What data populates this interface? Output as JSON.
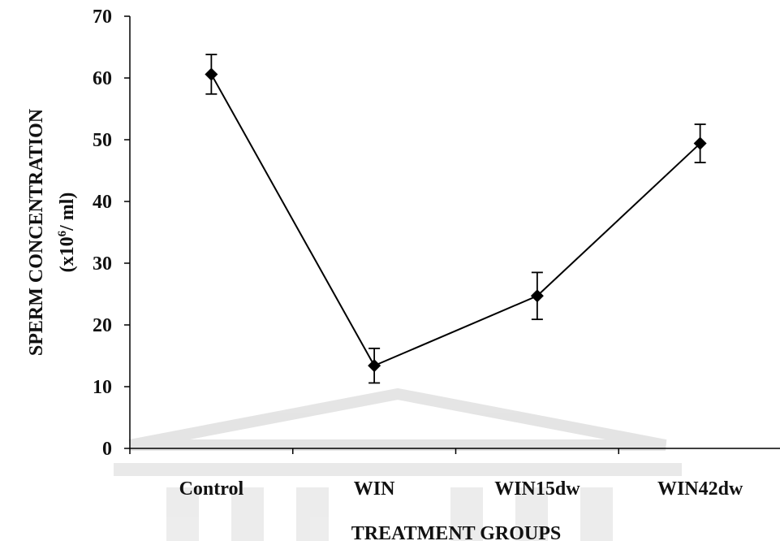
{
  "chart_data": {
    "type": "line",
    "categories": [
      "Control",
      "WIN",
      "WIN15dw",
      "WIN42dw"
    ],
    "series": [
      {
        "values": [
          60.6,
          13.4,
          24.7,
          49.4
        ],
        "error": [
          3.2,
          2.8,
          3.8,
          3.1
        ]
      }
    ],
    "xlabel": "TREATMENT GROUPS",
    "ylabel_line1": "SPERM CONCENTRATION",
    "ylabel_line2_prefix": "(x10",
    "ylabel_line2_sup": "6",
    "ylabel_line2_suffix": "/ ml)",
    "ylim": [
      0,
      70
    ],
    "yticks": [
      0,
      10,
      20,
      30,
      40,
      50,
      60,
      70
    ],
    "grid": false,
    "marker": "diamond",
    "line_color": "#000000",
    "watermark_colors": [
      "#c9c9c9",
      "#dcdcdc"
    ]
  }
}
